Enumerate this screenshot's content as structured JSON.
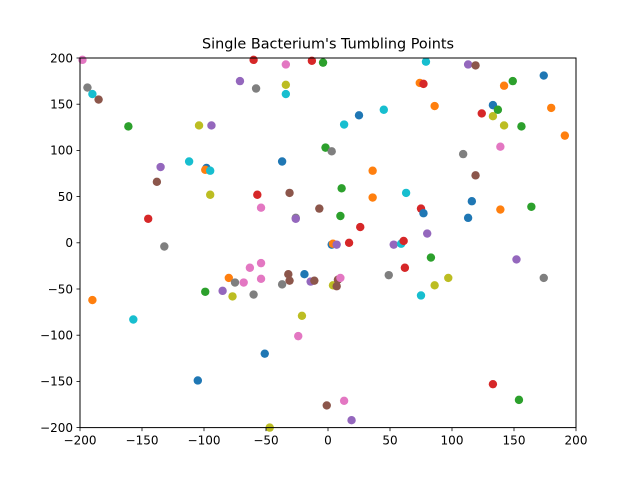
{
  "chart_data": {
    "type": "scatter",
    "title": "Single Bacterium's Tumbling Points",
    "xlabel": "",
    "ylabel": "",
    "xlim": [
      -200,
      200
    ],
    "ylim": [
      -200,
      200
    ],
    "xticks": [
      -200,
      -150,
      -100,
      -50,
      0,
      50,
      100,
      150,
      200
    ],
    "yticks": [
      -200,
      -150,
      -100,
      -50,
      0,
      50,
      100,
      150,
      200
    ],
    "grid": false,
    "palette": [
      "#1f77b4",
      "#ff7f0e",
      "#2ca02c",
      "#d62728",
      "#9467bd",
      "#8c564b",
      "#e377c2",
      "#7f7f7f",
      "#bcbd22",
      "#17becf"
    ],
    "points": [
      {
        "x": -198,
        "y": 198,
        "c": 6
      },
      {
        "x": -194,
        "y": 168,
        "c": 7
      },
      {
        "x": -190,
        "y": 161,
        "c": 9
      },
      {
        "x": -185,
        "y": 155,
        "c": 5
      },
      {
        "x": -190,
        "y": -62,
        "c": 1
      },
      {
        "x": -161,
        "y": 126,
        "c": 2
      },
      {
        "x": -157,
        "y": -83,
        "c": 9
      },
      {
        "x": -145,
        "y": 26,
        "c": 3
      },
      {
        "x": -138,
        "y": 66,
        "c": 5
      },
      {
        "x": -135,
        "y": 82,
        "c": 4
      },
      {
        "x": -132,
        "y": -4,
        "c": 7
      },
      {
        "x": -112,
        "y": 88,
        "c": 9
      },
      {
        "x": -104,
        "y": 127,
        "c": 8
      },
      {
        "x": -105,
        "y": -149,
        "c": 0
      },
      {
        "x": -98,
        "y": 81,
        "c": 0
      },
      {
        "x": -99,
        "y": 79,
        "c": 1
      },
      {
        "x": -95,
        "y": 78,
        "c": 9
      },
      {
        "x": -95,
        "y": 52,
        "c": 8
      },
      {
        "x": -94,
        "y": 127,
        "c": 4
      },
      {
        "x": -99,
        "y": -53,
        "c": 2
      },
      {
        "x": -85,
        "y": -52,
        "c": 4
      },
      {
        "x": -80,
        "y": -38,
        "c": 1
      },
      {
        "x": -77,
        "y": -58,
        "c": 8
      },
      {
        "x": -75,
        "y": -43,
        "c": 7
      },
      {
        "x": -71,
        "y": 175,
        "c": 4
      },
      {
        "x": -68,
        "y": -43,
        "c": 6
      },
      {
        "x": -63,
        "y": -27,
        "c": 6
      },
      {
        "x": -60,
        "y": -56,
        "c": 7
      },
      {
        "x": -60,
        "y": 198,
        "c": 3
      },
      {
        "x": -58,
        "y": 167,
        "c": 7
      },
      {
        "x": -57,
        "y": 52,
        "c": 3
      },
      {
        "x": -54,
        "y": 38,
        "c": 6
      },
      {
        "x": -54,
        "y": -22,
        "c": 6
      },
      {
        "x": -54,
        "y": -39,
        "c": 6
      },
      {
        "x": -51,
        "y": -120,
        "c": 0
      },
      {
        "x": -47,
        "y": -200,
        "c": 8
      },
      {
        "x": -37,
        "y": 88,
        "c": 0
      },
      {
        "x": -37,
        "y": -45,
        "c": 7
      },
      {
        "x": -34,
        "y": 193,
        "c": 6
      },
      {
        "x": -34,
        "y": 171,
        "c": 8
      },
      {
        "x": -34,
        "y": 161,
        "c": 9
      },
      {
        "x": -31,
        "y": 54,
        "c": 5
      },
      {
        "x": -32,
        "y": -34,
        "c": 5
      },
      {
        "x": -31,
        "y": -41,
        "c": 5
      },
      {
        "x": -26,
        "y": 27,
        "c": 7
      },
      {
        "x": -26,
        "y": 26,
        "c": 4
      },
      {
        "x": -24,
        "y": -101,
        "c": 6
      },
      {
        "x": -21,
        "y": -79,
        "c": 8
      },
      {
        "x": -19,
        "y": -34,
        "c": 0
      },
      {
        "x": -13,
        "y": 197,
        "c": 3
      },
      {
        "x": -14,
        "y": -42,
        "c": 4
      },
      {
        "x": -11,
        "y": -41,
        "c": 5
      },
      {
        "x": -7,
        "y": 37,
        "c": 5
      },
      {
        "x": -4,
        "y": 195,
        "c": 2
      },
      {
        "x": -2,
        "y": 103,
        "c": 2
      },
      {
        "x": 3,
        "y": 99,
        "c": 7
      },
      {
        "x": -1,
        "y": -176,
        "c": 5
      },
      {
        "x": 3,
        "y": -2,
        "c": 0
      },
      {
        "x": 4,
        "y": -1,
        "c": 1
      },
      {
        "x": 7,
        "y": -2,
        "c": 4
      },
      {
        "x": 4,
        "y": -46,
        "c": 8
      },
      {
        "x": 7,
        "y": -47,
        "c": 5
      },
      {
        "x": 8,
        "y": -40,
        "c": 5
      },
      {
        "x": 10,
        "y": -38,
        "c": 6
      },
      {
        "x": 11,
        "y": 59,
        "c": 2
      },
      {
        "x": 10,
        "y": 29,
        "c": 2
      },
      {
        "x": 13,
        "y": 128,
        "c": 9
      },
      {
        "x": 13,
        "y": -171,
        "c": 6
      },
      {
        "x": 17,
        "y": 0,
        "c": 3
      },
      {
        "x": 19,
        "y": -192,
        "c": 4
      },
      {
        "x": 25,
        "y": 138,
        "c": 0
      },
      {
        "x": 26,
        "y": 17,
        "c": 3
      },
      {
        "x": 36,
        "y": 78,
        "c": 1
      },
      {
        "x": 36,
        "y": 49,
        "c": 1
      },
      {
        "x": 45,
        "y": 144,
        "c": 9
      },
      {
        "x": 49,
        "y": -35,
        "c": 7
      },
      {
        "x": 53,
        "y": -2,
        "c": 4
      },
      {
        "x": 59,
        "y": -1,
        "c": 9
      },
      {
        "x": 61,
        "y": 2,
        "c": 3
      },
      {
        "x": 62,
        "y": -27,
        "c": 3
      },
      {
        "x": 63,
        "y": 54,
        "c": 9
      },
      {
        "x": 74,
        "y": 173,
        "c": 1
      },
      {
        "x": 77,
        "y": 172,
        "c": 3
      },
      {
        "x": 79,
        "y": 196,
        "c": 9
      },
      {
        "x": 75,
        "y": 37,
        "c": 3
      },
      {
        "x": 77,
        "y": 32,
        "c": 0
      },
      {
        "x": 75,
        "y": -57,
        "c": 9
      },
      {
        "x": 80,
        "y": 10,
        "c": 4
      },
      {
        "x": 83,
        "y": -16,
        "c": 2
      },
      {
        "x": 86,
        "y": 148,
        "c": 1
      },
      {
        "x": 86,
        "y": -46,
        "c": 8
      },
      {
        "x": 97,
        "y": -38,
        "c": 8
      },
      {
        "x": 109,
        "y": 96,
        "c": 7
      },
      {
        "x": 113,
        "y": 193,
        "c": 4
      },
      {
        "x": 119,
        "y": 192,
        "c": 5
      },
      {
        "x": 113,
        "y": 27,
        "c": 0
      },
      {
        "x": 116,
        "y": 45,
        "c": 0
      },
      {
        "x": 119,
        "y": 73,
        "c": 5
      },
      {
        "x": 124,
        "y": 140,
        "c": 3
      },
      {
        "x": 133,
        "y": 149,
        "c": 0
      },
      {
        "x": 133,
        "y": 137,
        "c": 8
      },
      {
        "x": 137,
        "y": 144,
        "c": 2
      },
      {
        "x": 139,
        "y": 104,
        "c": 6
      },
      {
        "x": 139,
        "y": 36,
        "c": 1
      },
      {
        "x": 142,
        "y": 170,
        "c": 1
      },
      {
        "x": 142,
        "y": 127,
        "c": 8
      },
      {
        "x": 133,
        "y": -153,
        "c": 3
      },
      {
        "x": 149,
        "y": 175,
        "c": 2
      },
      {
        "x": 152,
        "y": -18,
        "c": 4
      },
      {
        "x": 154,
        "y": -170,
        "c": 2
      },
      {
        "x": 156,
        "y": 126,
        "c": 2
      },
      {
        "x": 164,
        "y": 39,
        "c": 2
      },
      {
        "x": 174,
        "y": 181,
        "c": 0
      },
      {
        "x": 174,
        "y": -38,
        "c": 7
      },
      {
        "x": 180,
        "y": 146,
        "c": 1
      },
      {
        "x": 191,
        "y": 116,
        "c": 1
      }
    ]
  }
}
